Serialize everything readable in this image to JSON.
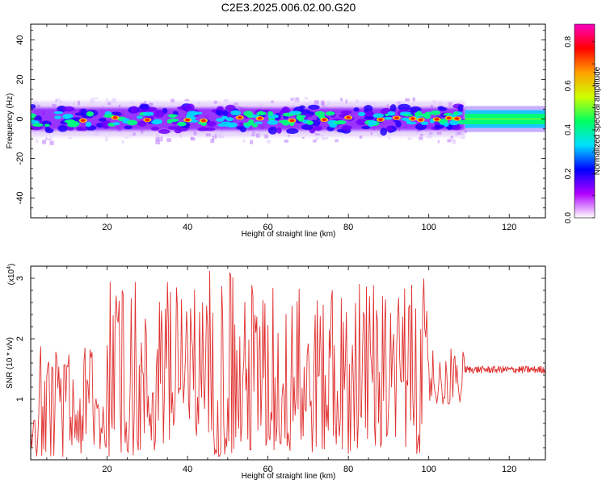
{
  "figure_title": "C2E3.2025.006.02.00.G20",
  "chart_data": [
    {
      "type": "heatmap",
      "title": "C2E3.2025.006.02.00.G20",
      "xlabel": "Height of straight line (km)",
      "ylabel": "Frequency (Hz)",
      "xlim": [
        1,
        129
      ],
      "ylim": [
        -50,
        48
      ],
      "xticks": [
        20,
        40,
        60,
        80,
        100,
        120
      ],
      "yticks": [
        -40,
        -20,
        0,
        20,
        40
      ],
      "grid": false,
      "colorbar": {
        "label": "Normalized spectral amplitude",
        "range": [
          0.0,
          0.88
        ],
        "ticks": [
          0.0,
          0.2,
          0.4,
          0.6,
          0.8
        ],
        "colors": [
          "#ffffff",
          "#b000ff",
          "#0000ff",
          "#00e0ff",
          "#00ff60",
          "#d0ff00",
          "#ffa000",
          "#ff0000",
          "#ff00c0"
        ]
      },
      "band": {
        "center_hz": 0,
        "core_halfwidth_hz": 3,
        "envelope_halfwidth_hz": 9,
        "structured_region_km": [
          1,
          109
        ],
        "smooth_region_km": [
          109,
          129
        ],
        "peak_amplitude": 0.85,
        "hotspots_km": [
          14,
          22,
          30,
          40,
          44,
          53,
          58,
          66,
          74,
          80,
          88,
          92,
          96,
          98,
          102,
          105,
          107
        ]
      }
    },
    {
      "type": "line",
      "xlabel": "Height of straight line (km)",
      "ylabel": "SNR (10 * v/v)",
      "y_multiplier": "(x10",
      "y_multiplier_exp": "4",
      "y_multiplier_close": ")",
      "xlim": [
        1,
        129
      ],
      "ylim": [
        0,
        3.2
      ],
      "xticks": [
        20,
        40,
        60,
        80,
        100,
        120
      ],
      "yticks": [
        1,
        2,
        3
      ],
      "grid": false,
      "series": [
        {
          "color": "#e03030",
          "x_range_km": [
            1,
            129
          ],
          "segments": [
            {
              "x": [
                1,
                20
              ],
              "low": 0.05,
              "high": 1.9
            },
            {
              "x": [
                20,
                40
              ],
              "low": 0.05,
              "high": 2.95
            },
            {
              "x": [
                40,
                60
              ],
              "low": 0.05,
              "high": 3.15
            },
            {
              "x": [
                60,
                80
              ],
              "low": 0.1,
              "high": 3.0
            },
            {
              "x": [
                80,
                100
              ],
              "low": 0.1,
              "high": 3.0
            },
            {
              "x": [
                100,
                109
              ],
              "low": 0.9,
              "high": 1.9
            },
            {
              "x": [
                109,
                129
              ],
              "low": 1.43,
              "high": 1.55
            }
          ]
        }
      ]
    }
  ]
}
